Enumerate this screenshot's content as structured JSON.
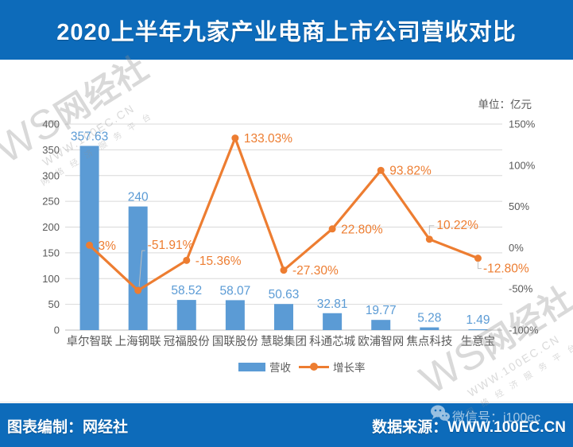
{
  "header": {
    "title": "2020上半年九家产业电商上市公司营收对比"
  },
  "unit_label": "单位：亿元",
  "chart_data": {
    "type": "bar-line-combo",
    "categories": [
      "卓尔智联",
      "上海钢联",
      "冠福股份",
      "国联股份",
      "慧聪集团",
      "科通芯城",
      "欧浦智网",
      "焦点科技",
      "生意宝"
    ],
    "series": [
      {
        "name": "营收",
        "type": "bar",
        "axis": "left",
        "unit": "亿元",
        "color": "#5b9bd5",
        "values": [
          357.63,
          240,
          58.52,
          58.07,
          50.63,
          32.81,
          19.77,
          5.28,
          1.49
        ],
        "labels": [
          "357.63",
          "240",
          "58.52",
          "58.07",
          "50.63",
          "32.81",
          "19.77",
          "5.28",
          "1.49"
        ]
      },
      {
        "name": "增长率",
        "type": "line",
        "axis": "right",
        "unit": "%",
        "color": "#ed7d31",
        "values": [
          3,
          -51.91,
          -15.36,
          133.03,
          -27.3,
          22.8,
          93.82,
          10.22,
          -12.8
        ],
        "labels": [
          "3%",
          "-51.91%",
          "-15.36%",
          "133.03%",
          "-27.30%",
          "22.80%",
          "93.82%",
          "10.22%",
          "-12.80%"
        ],
        "label_placements": [
          "right",
          "above-leader",
          "right",
          "right",
          "right",
          "right",
          "right",
          "elbow-up",
          "elbow-down"
        ]
      }
    ],
    "left_axis": {
      "ticks": [
        "400",
        "350",
        "300",
        "250",
        "200",
        "150",
        "100",
        "50",
        "0"
      ],
      "min": 0,
      "max": 400
    },
    "right_axis": {
      "ticks": [
        "150%",
        "100%",
        "50%",
        "0%",
        "-50%",
        "-100%"
      ],
      "min": -100,
      "max": 150
    },
    "grid": true,
    "legend_position": "bottom",
    "title": "2020上半年九家产业电商上市公司营收对比"
  },
  "watermark": {
    "brand_ws": "WS",
    "brand_name": "网经社",
    "url": "WWW.100EC.CN",
    "tagline": "网 络 经 济 服 务 平 台"
  },
  "footer": {
    "left": "图表编制：网经社",
    "right": "数据来源：WWW.100EC.CN",
    "wechat": "微信号：i100ec"
  },
  "colors": {
    "banner": "#0d6bba",
    "bar": "#5b9bd5",
    "line": "#ed7d31",
    "axis_text": "#595959",
    "grid": "#d9d9d9"
  }
}
